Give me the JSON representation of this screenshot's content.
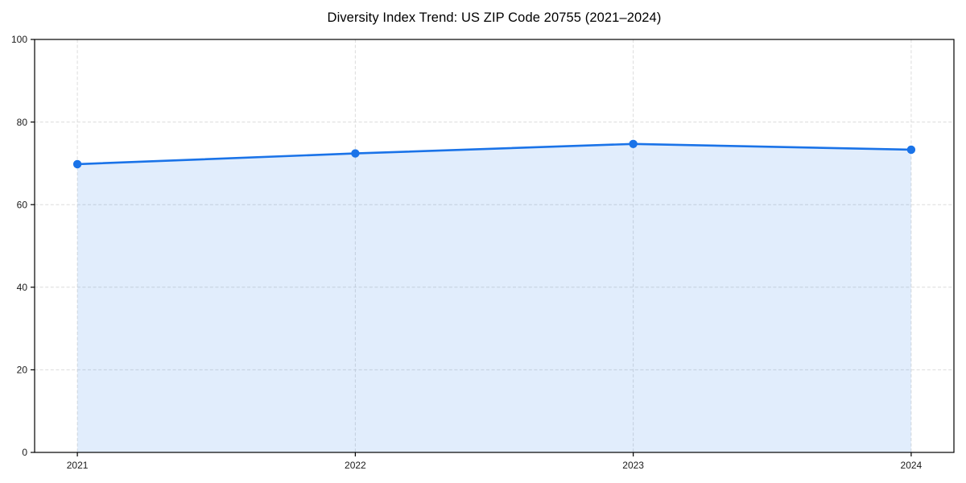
{
  "chart_data": {
    "type": "area",
    "title": "Diversity Index Trend: US ZIP Code 20755 (2021–2024)",
    "categories": [
      "2021",
      "2022",
      "2023",
      "2024"
    ],
    "series": [
      {
        "name": "Diversity Index",
        "values": [
          69.8,
          72.4,
          74.7,
          73.3
        ]
      }
    ],
    "xlabel": "",
    "ylabel": "",
    "ylim": [
      0,
      100
    ],
    "y_ticks": [
      0,
      20,
      40,
      60,
      80,
      100
    ],
    "grid": true,
    "grid_style": "dashed",
    "legend": false,
    "colors": {
      "line": "#1a73e8",
      "marker": "#1a73e8",
      "fill": "#1a73e8",
      "fill_opacity": 0.13,
      "grid": "#dcdcdc",
      "spine": "#000000",
      "tick_label": "#1a1a1a",
      "title": "#000000"
    }
  }
}
